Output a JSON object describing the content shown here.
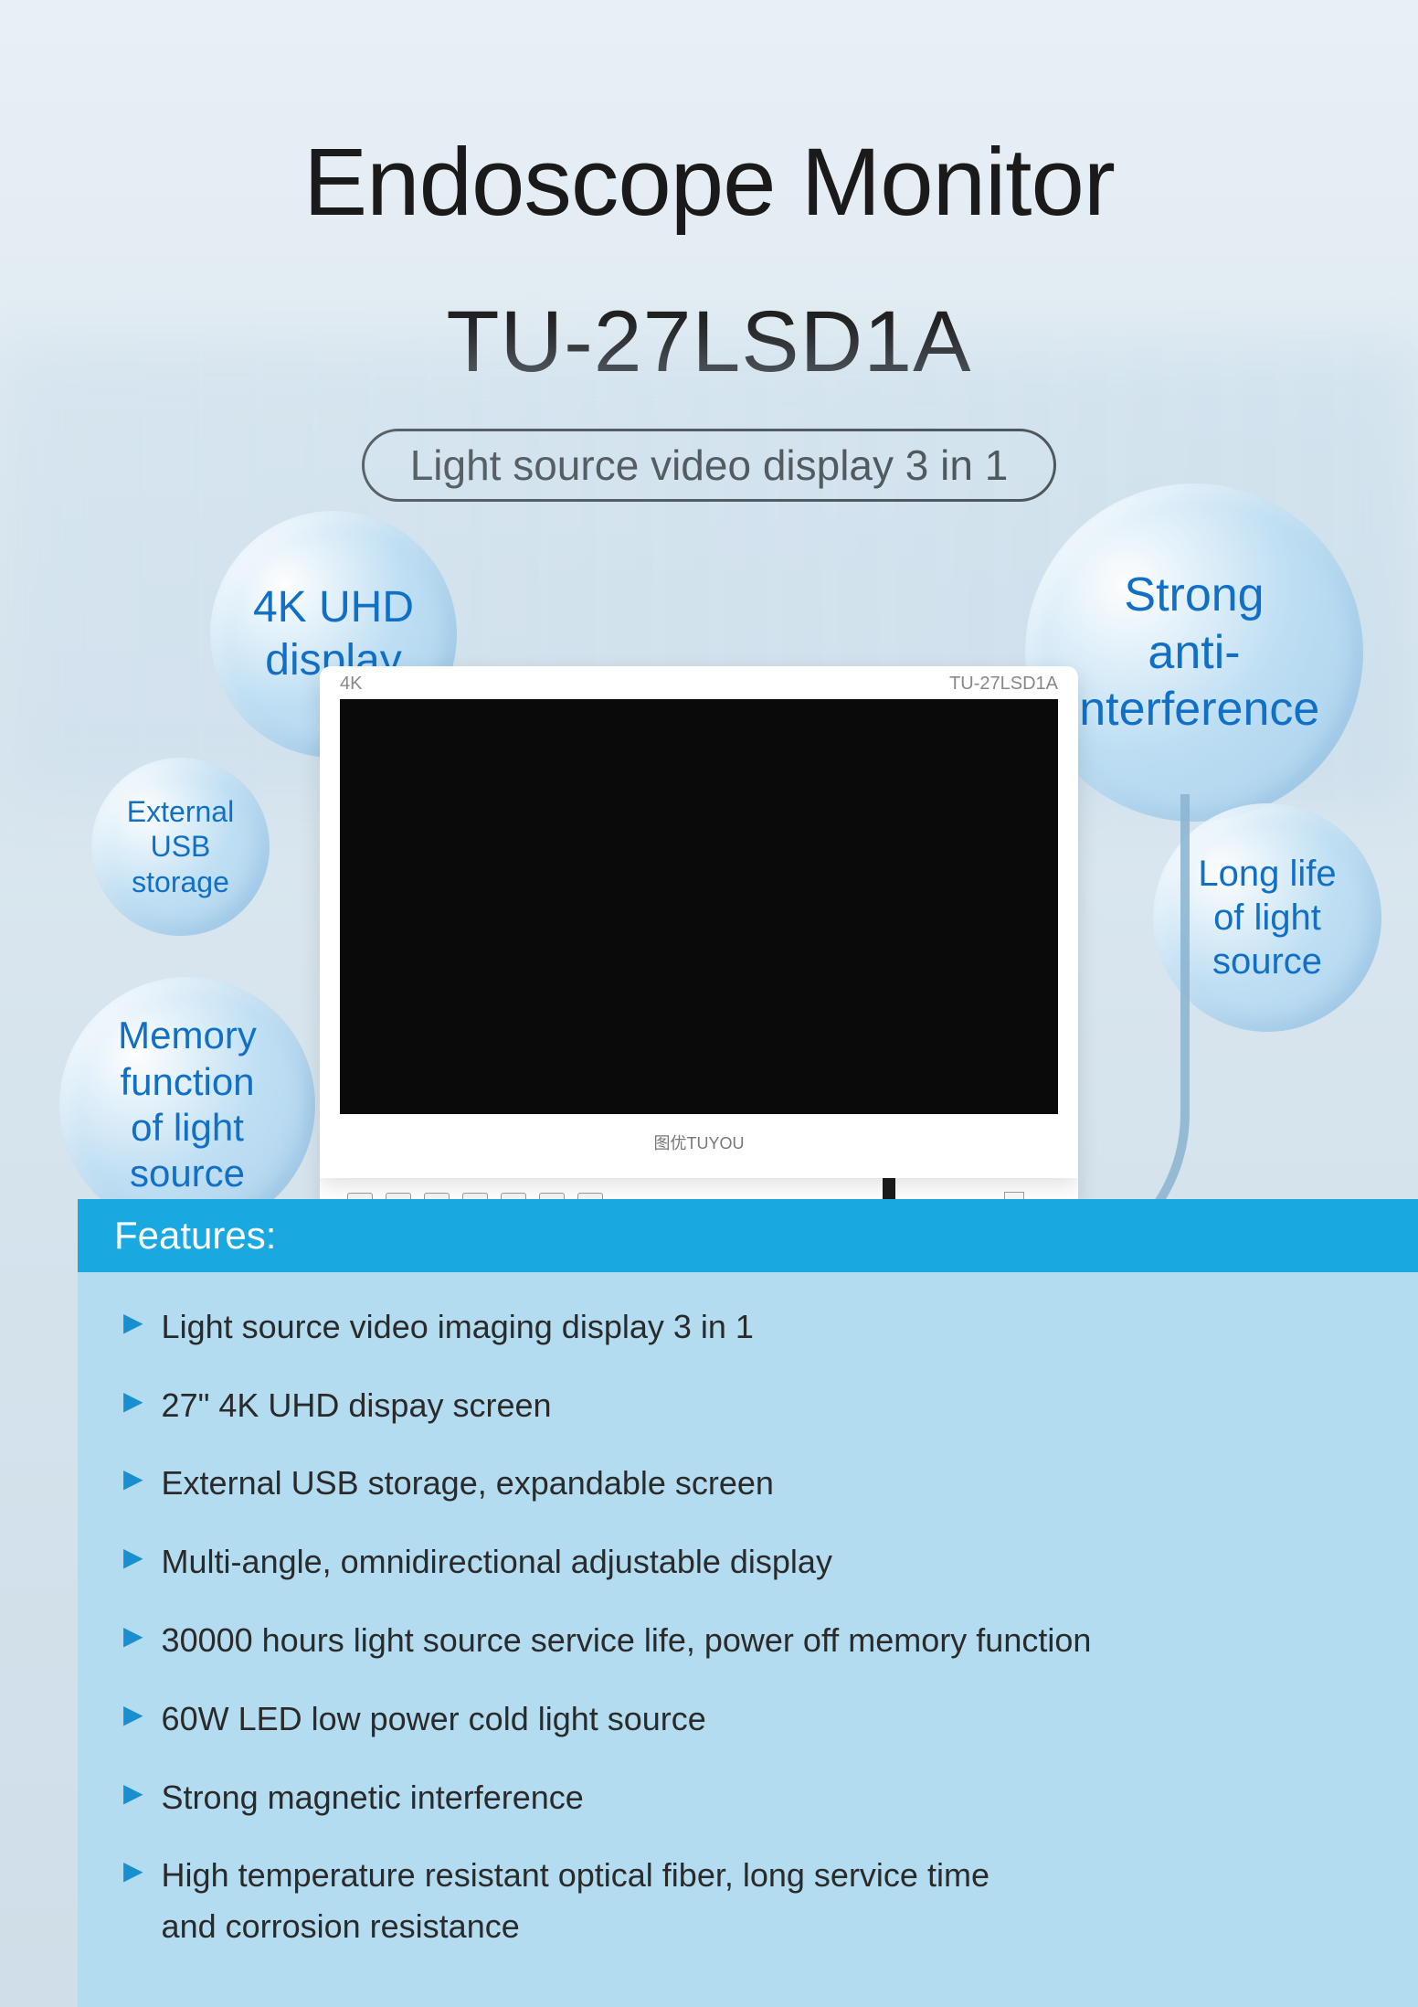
{
  "title": "Endoscope Monitor",
  "model": "TU-27LSD1A",
  "tagline": "Light source video display 3 in 1",
  "bubbles": {
    "b1": "4K UHD\ndisplay",
    "b2": "Strong\nanti-interference",
    "b3": "External\nUSB\nstorage",
    "b4": "Long life\nof light\nsource",
    "b5": "Memory\nfunction\nof light\nsource"
  },
  "monitor": {
    "label_left": "4K",
    "label_right": "TU-27LSD1A",
    "brand": "图优TUYOU"
  },
  "features": {
    "header": "Features:",
    "items": [
      "Light source video imaging display 3 in 1",
      "27\"  4K UHD dispay screen",
      "External USB storage, expandable screen",
      "Multi-angle, omnidirectional adjustable display",
      "30000 hours light source service life, power off memory function",
      "60W LED low power cold light source",
      "Strong magnetic interference",
      "High temperature resistant optical fiber, long service time\nand corrosion resistance"
    ]
  },
  "colors": {
    "primary_blue": "#1aa8e0",
    "text_blue": "#1170c5",
    "arrow_blue": "#1a8fd0",
    "light_blue_bg": "#b3dcf0",
    "page_bg_top": "#e8f0f5",
    "page_bg_bottom": "#cfdee8",
    "title_text": "#1a1a1a"
  },
  "typography": {
    "title_fontsize": 105,
    "model_fontsize": 95,
    "tagline_fontsize": 46,
    "feature_fontsize": 36,
    "header_fontsize": 42
  }
}
